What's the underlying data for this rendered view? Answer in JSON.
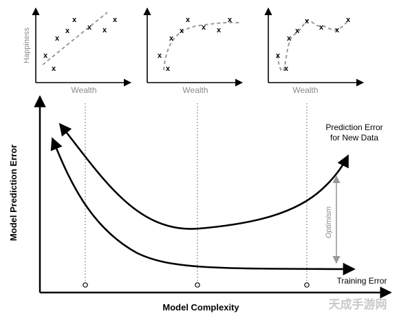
{
  "top_panels": {
    "ylabel": "Happiness",
    "xlabel": "Wealth",
    "marker": "x"
  },
  "main": {
    "ylabel": "Model Prediction Error",
    "xlabel": "Model Complexity",
    "curve_prediction_label_line1": "Prediction Error",
    "curve_prediction_label_line2": "for New Data",
    "curve_training_label": "Training Error",
    "optimism_label": "Optimism"
  },
  "watermark": "天成手游网",
  "colors": {
    "curve": "#000000",
    "fit_line": "#999999",
    "axis_label_gray": "#8a8a8a",
    "optimism_arrow": "#999999"
  }
}
